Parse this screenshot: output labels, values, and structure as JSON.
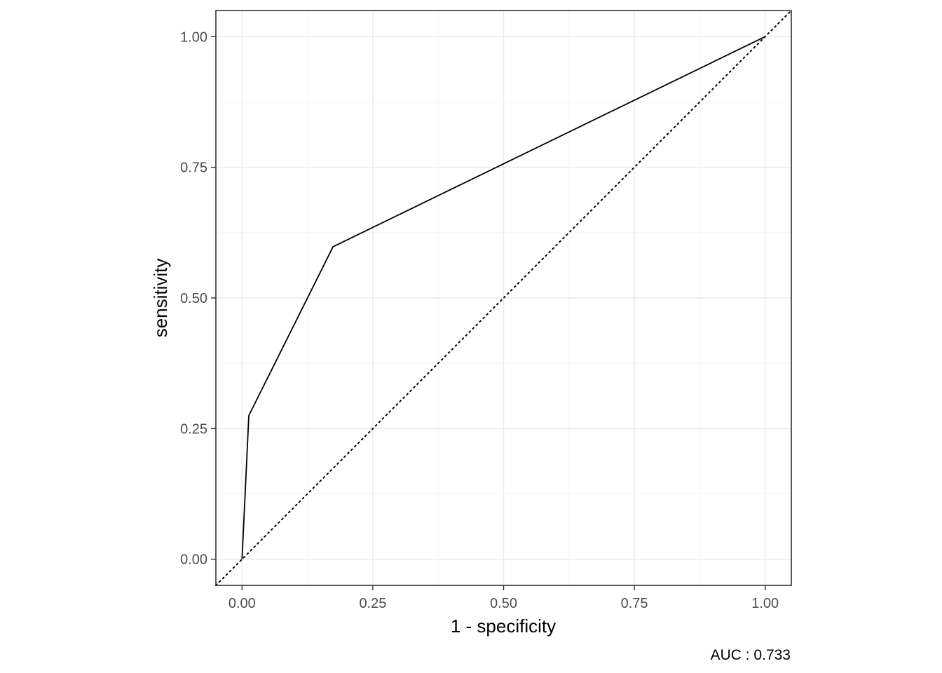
{
  "chart_data": {
    "type": "line",
    "title": "",
    "xlabel": "1 - specificity",
    "ylabel": "sensitivity",
    "caption": "AUC : 0.733",
    "xlim": [
      -0.05,
      1.05
    ],
    "ylim": [
      -0.05,
      1.05
    ],
    "x_ticks": [
      0.0,
      0.25,
      0.5,
      0.75,
      1.0
    ],
    "x_tick_labels": [
      "0.00",
      "0.25",
      "0.50",
      "0.75",
      "1.00"
    ],
    "y_ticks": [
      0.0,
      0.25,
      0.5,
      0.75,
      1.0
    ],
    "y_tick_labels": [
      "0.00",
      "0.25",
      "0.50",
      "0.75",
      "1.00"
    ],
    "grid": true,
    "series": [
      {
        "style": "solid",
        "color": "#000000",
        "x": [
          0.0,
          0.013,
          0.174,
          1.0
        ],
        "y": [
          0.0,
          0.275,
          0.598,
          1.0
        ]
      }
    ],
    "reference_line": {
      "style": "dotted",
      "color": "#000000",
      "x": [
        -0.05,
        1.05
      ],
      "y": [
        -0.05,
        1.05
      ]
    }
  }
}
